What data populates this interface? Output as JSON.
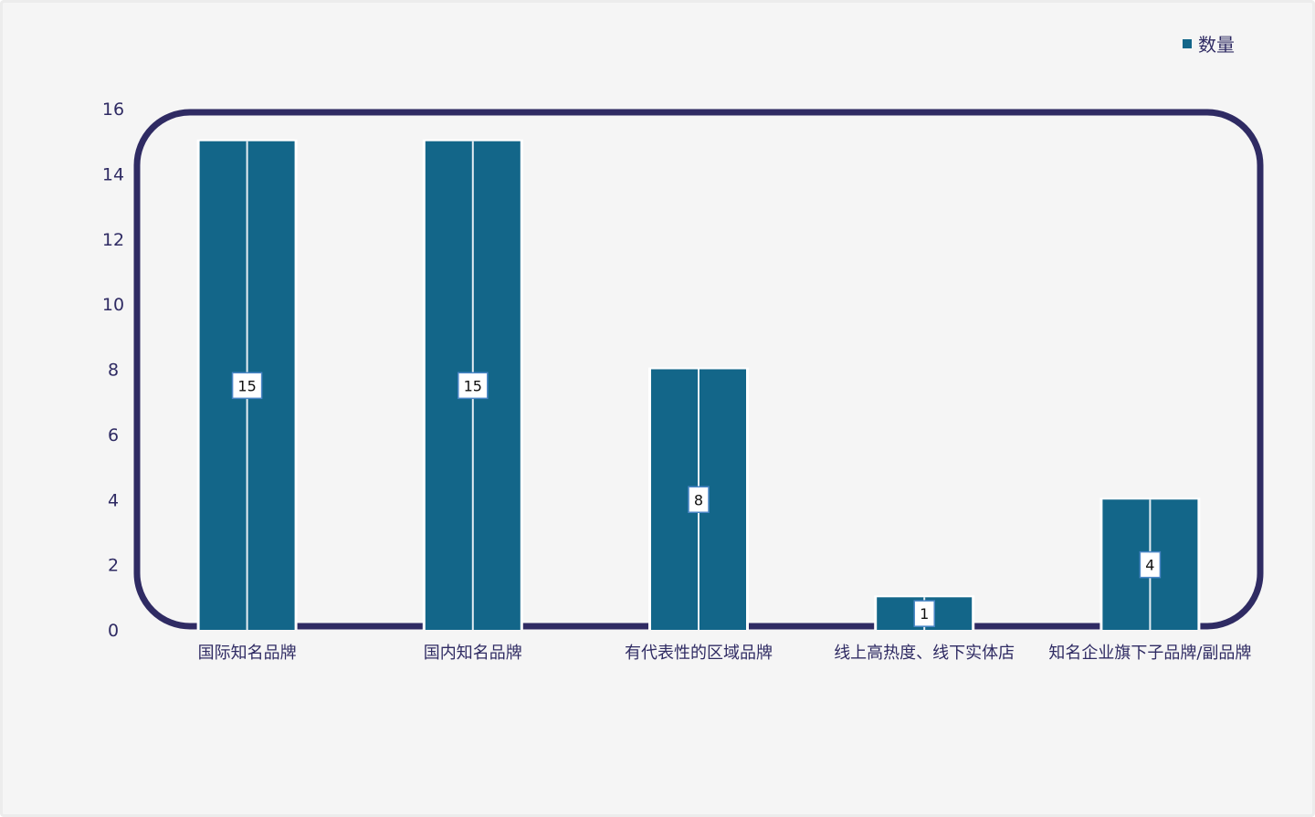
{
  "chart_data": {
    "type": "bar",
    "categories": [
      "国际知名品牌",
      "国内知名品牌",
      "有代表性的区域品牌",
      "线上高热度、线下实体店",
      "知名企业旗下子品牌/副品牌"
    ],
    "series": [
      {
        "name": "数量",
        "values": [
          15,
          15,
          8,
          1,
          4
        ]
      }
    ],
    "title": "",
    "xlabel": "",
    "ylabel": "",
    "ylim": [
      0,
      16
    ],
    "yticks": [
      0,
      2,
      4,
      6,
      8,
      10,
      12,
      14,
      16
    ],
    "legend_position": "top-right",
    "data_labels": true,
    "grid": false,
    "colors": {
      "bar": "#136689",
      "frame": "#2f2b63",
      "label_border": "#4a86c6",
      "text": "#2f2b63",
      "background": "#f5f5f5"
    }
  }
}
